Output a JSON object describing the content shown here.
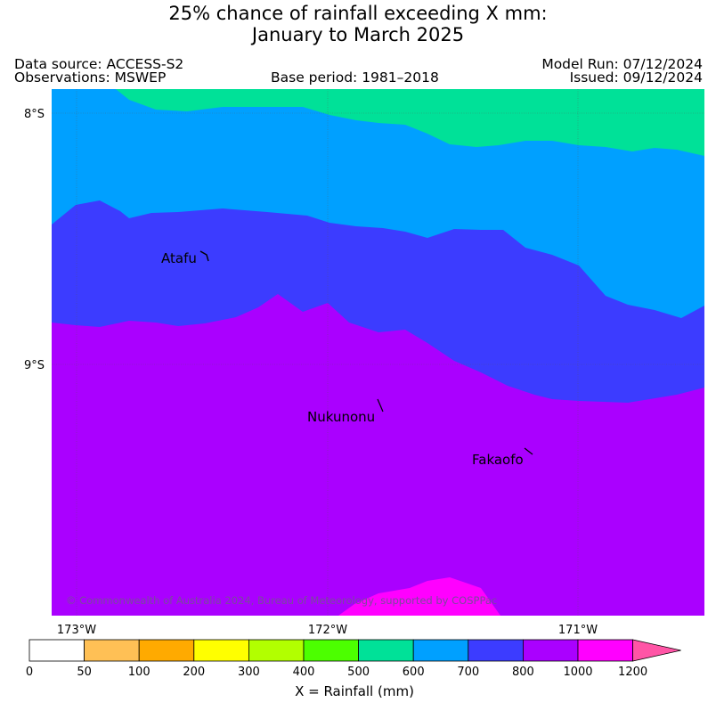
{
  "title": {
    "line1": "25% chance of rainfall exceeding X mm:",
    "line2": "January to March 2025"
  },
  "info": {
    "data_source": "Data source: ACCESS-S2",
    "observations": "Observations: MSWEP",
    "base_period": "Base period: 1981–2018",
    "model_run": "Model Run: 07/12/2024",
    "issued": "Issued: 09/12/2024"
  },
  "map": {
    "lat_labels": [
      "8°S",
      "9°S"
    ],
    "lon_labels": [
      "173°W",
      "172°W",
      "171°W"
    ],
    "places": [
      {
        "name": "Atafu"
      },
      {
        "name": "Nukunonu"
      },
      {
        "name": "Fakaofo"
      }
    ],
    "copyright": "© Commonwealth of Australia 2024, Bureau of Meteorology, supported by COSPPac"
  },
  "legend": {
    "ticks": [
      "0",
      "50",
      "100",
      "200",
      "300",
      "400",
      "500",
      "600",
      "700",
      "800",
      "1000",
      "1200"
    ],
    "colors": [
      "#ffffff",
      "#ffc055",
      "#ffaa00",
      "#ffff00",
      "#b2ff00",
      "#4cff00",
      "#00e198",
      "#00a0ff",
      "#3c3cff",
      "#aa00ff",
      "#ff00ff",
      "#ff55a6"
    ],
    "title": "X = Rainfall (mm)"
  }
}
